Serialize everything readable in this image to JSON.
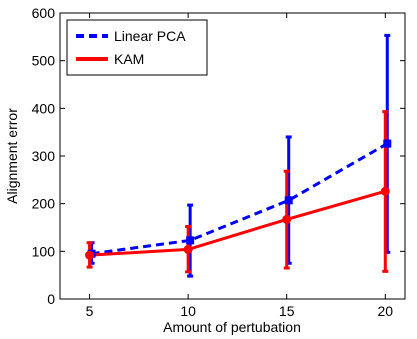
{
  "chart_data": {
    "type": "line",
    "title": "",
    "xlabel": "Amount of pertubation",
    "ylabel": "Alignment error",
    "x": [
      5,
      10,
      15,
      20
    ],
    "xlim": [
      3.5,
      21
    ],
    "ylim": [
      0,
      600
    ],
    "xticks": [
      5,
      10,
      15,
      20
    ],
    "yticks": [
      0,
      100,
      200,
      300,
      400,
      500,
      600
    ],
    "grid": false,
    "legend_position": "top-left",
    "series": [
      {
        "name": "Linear PCA",
        "values": [
          95,
          123,
          207,
          326
        ],
        "err_low": [
          75,
          48,
          75,
          98
        ],
        "err_high": [
          118,
          197,
          340,
          553
        ],
        "color": "#0000ff",
        "style": "dashed"
      },
      {
        "name": "KAM",
        "values": [
          92,
          104,
          167,
          226
        ],
        "err_low": [
          67,
          57,
          65,
          58
        ],
        "err_high": [
          118,
          152,
          268,
          393
        ],
        "color": "#ff0000",
        "style": "solid"
      }
    ]
  }
}
